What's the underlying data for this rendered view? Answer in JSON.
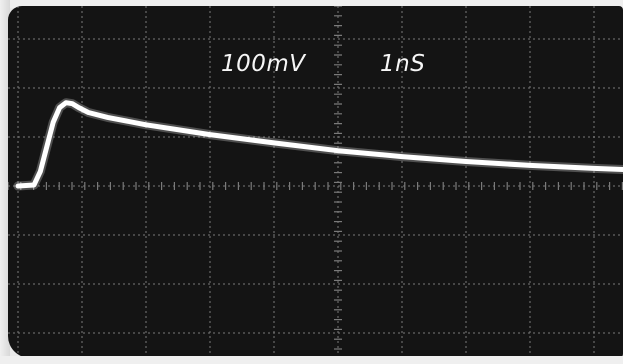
{
  "readouts": {
    "volts_per_div": "100mV",
    "time_per_div": "1nS"
  },
  "colors": {
    "screen": "#141414",
    "graticule": "#7a7a7a",
    "trace": "#ffffff"
  },
  "chart_data": {
    "type": "line",
    "title": "",
    "xlabel": "",
    "ylabel": "",
    "grid": true,
    "xlim": [
      0,
      10
    ],
    "ylim": [
      -4,
      4
    ],
    "series": [
      {
        "x": [
          0.0,
          0.25,
          0.35,
          0.45,
          0.55,
          0.65,
          0.75,
          0.85,
          0.95,
          1.1,
          1.4,
          2.0,
          3.0,
          4.0,
          5.0,
          6.0,
          7.0,
          8.0,
          9.0,
          9.8
        ],
        "y": [
          0.0,
          0.02,
          0.3,
          0.8,
          1.3,
          1.6,
          1.7,
          1.68,
          1.6,
          1.5,
          1.4,
          1.25,
          1.05,
          0.88,
          0.72,
          0.6,
          0.5,
          0.42,
          0.36,
          0.32
        ]
      }
    ]
  }
}
